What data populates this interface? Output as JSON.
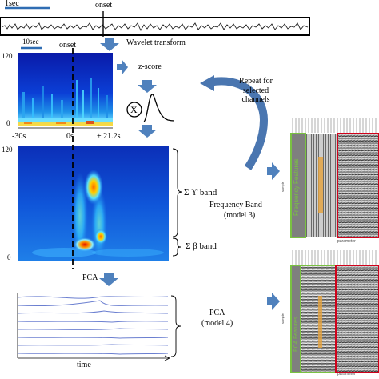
{
  "eeg": {
    "scale_label": "1sec",
    "onset_label": "onset"
  },
  "wavelet": {
    "arrow_label": "Wavelet transform",
    "scale_label": "10sec",
    "onset_label": "onset",
    "y_top": "120",
    "y_bottom": "0",
    "x_ticks": [
      "-30s",
      "0s",
      "+ 21.2s"
    ]
  },
  "zscore": {
    "label": "z-score",
    "multiply_symbol": "X"
  },
  "repeat_note": "Repeat for selected channels",
  "big_spectrogram": {
    "y_top": "120",
    "y_bottom": "0",
    "gamma_label": "Σ  ϒ band",
    "beta_label": "Σ  β band"
  },
  "model3": {
    "label_line1": "Frequency Band",
    "label_line2": "(model 3)",
    "side_label": "Frequency Features",
    "axis_label": "parameter",
    "row_label": "sample"
  },
  "pca": {
    "arrow_label": "PCA",
    "label_line1": "PCA",
    "label_line2": "(model 4)",
    "time_label": "time",
    "side_label": "PCA Features",
    "axis_label": "parameter",
    "row_label": "sample"
  },
  "colors": {
    "arrow": "#4f81bd",
    "arrow_curve": "#4a76b0",
    "green_box": "#7ac142",
    "red_box": "#d0021b",
    "feature_text": "#e6a23c",
    "pca_lines": "#6b7fd0"
  }
}
